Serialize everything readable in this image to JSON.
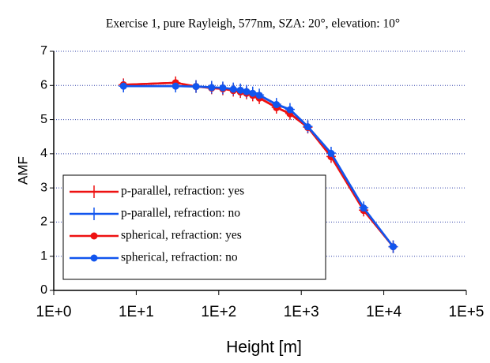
{
  "chart_data": {
    "type": "line",
    "title": "Exercise 1, pure Rayleigh, 577nm, SZA: 20°, elevation: 10°",
    "x_label": "Height [m]",
    "y_label": "AMF",
    "x_scale": "log",
    "xlim": [
      1,
      100000
    ],
    "xticks": [
      {
        "value": 1,
        "label": "1E+0"
      },
      {
        "value": 10,
        "label": "1E+1"
      },
      {
        "value": 100,
        "label": "1E+2"
      },
      {
        "value": 1000,
        "label": "1E+3"
      },
      {
        "value": 10000,
        "label": "1E+4"
      },
      {
        "value": 100000,
        "label": "1E+5"
      }
    ],
    "ylim": [
      0,
      7
    ],
    "yticks": [
      0,
      1,
      2,
      3,
      4,
      5,
      6,
      7
    ],
    "grid": true,
    "legend": "lower left",
    "series": [
      {
        "name": "p-parallel, refraction: yes",
        "color": "#ee1111",
        "marker": "plus",
        "x": [
          7,
          30,
          53,
          82,
          112,
          150,
          183,
          217,
          258,
          310,
          500,
          730,
          1200,
          2300,
          5700,
          13000
        ],
        "values": [
          6.02,
          6.08,
          5.97,
          5.93,
          5.9,
          5.86,
          5.82,
          5.78,
          5.72,
          5.64,
          5.36,
          5.18,
          4.78,
          3.92,
          2.35,
          1.28
        ]
      },
      {
        "name": "p-parallel, refraction: no",
        "color": "#1155ee",
        "marker": "plus",
        "x": [
          7,
          30,
          53,
          82,
          112,
          150,
          183,
          217,
          258,
          310,
          500,
          730,
          1200,
          2300,
          5700,
          13000
        ],
        "values": [
          5.98,
          5.98,
          5.97,
          5.95,
          5.93,
          5.9,
          5.87,
          5.83,
          5.78,
          5.72,
          5.45,
          5.3,
          4.8,
          4.02,
          2.42,
          1.28
        ]
      },
      {
        "name": "spherical, refraction: yes",
        "color": "#ee1111",
        "marker": "circle",
        "x": [
          7,
          30,
          53,
          82,
          112,
          150,
          183,
          217,
          258,
          310,
          500,
          730,
          1200,
          2300,
          5700,
          13000
        ],
        "values": [
          6.02,
          6.08,
          5.97,
          5.92,
          5.9,
          5.85,
          5.81,
          5.77,
          5.71,
          5.63,
          5.35,
          5.17,
          4.77,
          3.91,
          2.34,
          1.28
        ]
      },
      {
        "name": "spherical, refraction: no",
        "color": "#1155ee",
        "marker": "circle",
        "x": [
          7,
          30,
          53,
          82,
          112,
          150,
          183,
          217,
          258,
          310,
          500,
          730,
          1200,
          2300,
          5700,
          13000
        ],
        "values": [
          5.98,
          5.98,
          5.97,
          5.94,
          5.93,
          5.89,
          5.86,
          5.82,
          5.77,
          5.71,
          5.44,
          5.29,
          4.79,
          4.01,
          2.41,
          1.28
        ]
      }
    ]
  }
}
